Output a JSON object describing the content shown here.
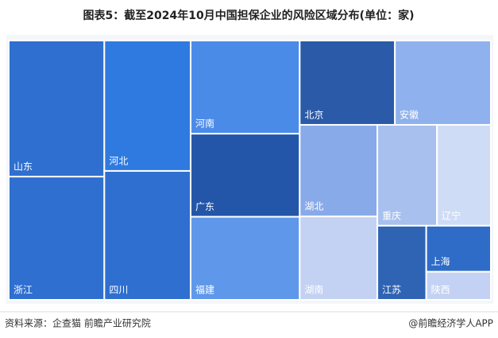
{
  "chart_data": {
    "type": "treemap",
    "title": "图表5：截至2024年10月中国担保企业的风险区域分布(单位：家)",
    "categories": [
      "山东",
      "浙江",
      "河北",
      "四川",
      "河南",
      "广东",
      "福建",
      "北京",
      "安徽",
      "湖北",
      "湖南",
      "重庆",
      "辽宁",
      "江苏",
      "上海",
      "陕西"
    ],
    "values": [
      201,
      182,
      174,
      172,
      157,
      140,
      140,
      124,
      125,
      110,
      100,
      93,
      84,
      56,
      46,
      28
    ],
    "colors": [
      "#2e6fd0",
      "#2e6fd0",
      "#2f7ae0",
      "#2e6fd0",
      "#4b8be8",
      "#2356a8",
      "#5f98ea",
      "#2a5aa8",
      "#8fb1ee",
      "#88aae8",
      "#c3d1f2",
      "#a7c0ee",
      "#cfdcf6",
      "#2f63b4",
      "#2e6cc8",
      "#c3d2f4"
    ],
    "source": "资料来源：企查猫 前瞻产业研究院",
    "credit": "@前瞻经济学人APP"
  }
}
